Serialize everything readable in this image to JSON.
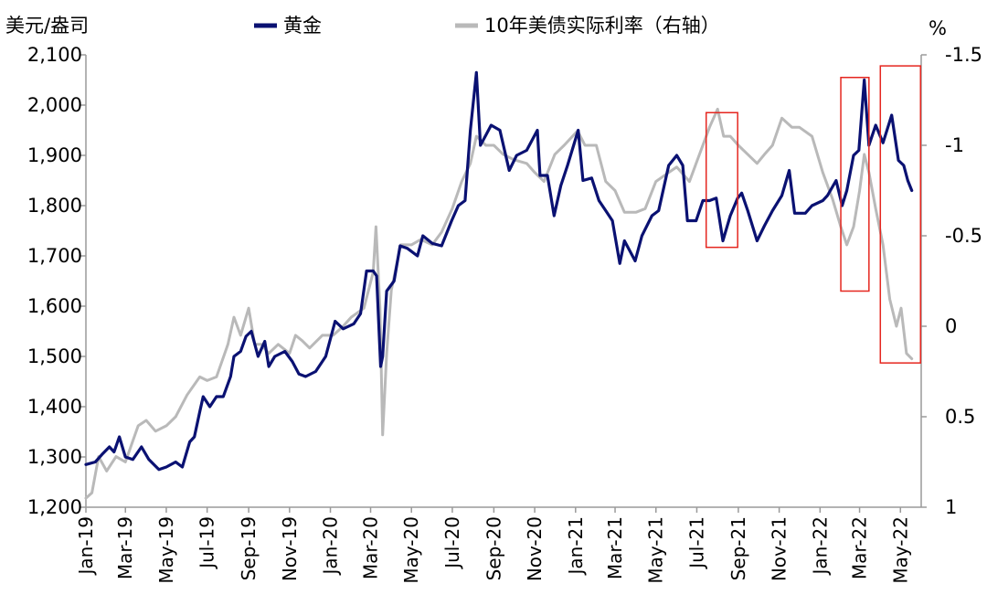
{
  "chart_data": {
    "type": "line",
    "left_axis_label": "美元/盎司",
    "right_axis_label": "%",
    "legend_position": "top",
    "y_left_lim": [
      1200,
      2100
    ],
    "y_left_ticks": [
      "1,200",
      "1,300",
      "1,400",
      "1,500",
      "1,600",
      "1,700",
      "1,800",
      "1,900",
      "2,000",
      "2,100"
    ],
    "y_right_lim": [
      1,
      -1.5
    ],
    "y_right_inverted": true,
    "y_right_ticks": [
      "1",
      "0.5",
      "0",
      "-0.5",
      "-1",
      "-1.5"
    ],
    "x_ticks": [
      "Jan-19",
      "Mar-19",
      "May-19",
      "Jul-19",
      "Sep-19",
      "Nov-19",
      "Jan-20",
      "Mar-20",
      "May-20",
      "Jul-20",
      "Sep-20",
      "Nov-20",
      "Jan-21",
      "Mar-21",
      "May-21",
      "Jul-21",
      "Sep-21",
      "Nov-21",
      "Jan-22",
      "Mar-22",
      "May-22"
    ],
    "series": [
      {
        "name": "黄金",
        "axis": "left",
        "color": "#0a1172",
        "points": [
          [
            "2019-01-01",
            1285
          ],
          [
            "2019-01-15",
            1290
          ],
          [
            "2019-01-25",
            1305
          ],
          [
            "2019-02-05",
            1320
          ],
          [
            "2019-02-12",
            1310
          ],
          [
            "2019-02-20",
            1340
          ],
          [
            "2019-03-01",
            1300
          ],
          [
            "2019-03-12",
            1295
          ],
          [
            "2019-03-25",
            1320
          ],
          [
            "2019-04-05",
            1295
          ],
          [
            "2019-04-20",
            1275
          ],
          [
            "2019-05-01",
            1280
          ],
          [
            "2019-05-15",
            1290
          ],
          [
            "2019-05-25",
            1280
          ],
          [
            "2019-06-05",
            1330
          ],
          [
            "2019-06-12",
            1340
          ],
          [
            "2019-06-20",
            1390
          ],
          [
            "2019-06-25",
            1420
          ],
          [
            "2019-07-05",
            1400
          ],
          [
            "2019-07-15",
            1420
          ],
          [
            "2019-07-25",
            1420
          ],
          [
            "2019-08-05",
            1460
          ],
          [
            "2019-08-10",
            1500
          ],
          [
            "2019-08-20",
            1510
          ],
          [
            "2019-08-28",
            1540
          ],
          [
            "2019-09-05",
            1550
          ],
          [
            "2019-09-15",
            1500
          ],
          [
            "2019-09-25",
            1530
          ],
          [
            "2019-10-01",
            1480
          ],
          [
            "2019-10-10",
            1500
          ],
          [
            "2019-10-25",
            1510
          ],
          [
            "2019-11-05",
            1490
          ],
          [
            "2019-11-15",
            1465
          ],
          [
            "2019-11-25",
            1460
          ],
          [
            "2019-12-10",
            1470
          ],
          [
            "2019-12-25",
            1500
          ],
          [
            "2020-01-08",
            1570
          ],
          [
            "2020-01-20",
            1555
          ],
          [
            "2020-02-05",
            1565
          ],
          [
            "2020-02-15",
            1585
          ],
          [
            "2020-02-24",
            1670
          ],
          [
            "2020-03-05",
            1670
          ],
          [
            "2020-03-10",
            1660
          ],
          [
            "2020-03-16",
            1480
          ],
          [
            "2020-03-19",
            1500
          ],
          [
            "2020-03-25",
            1630
          ],
          [
            "2020-04-05",
            1650
          ],
          [
            "2020-04-14",
            1720
          ],
          [
            "2020-04-25",
            1715
          ],
          [
            "2020-05-10",
            1700
          ],
          [
            "2020-05-18",
            1740
          ],
          [
            "2020-06-01",
            1725
          ],
          [
            "2020-06-15",
            1720
          ],
          [
            "2020-06-30",
            1770
          ],
          [
            "2020-07-10",
            1800
          ],
          [
            "2020-07-20",
            1810
          ],
          [
            "2020-07-28",
            1950
          ],
          [
            "2020-08-06",
            2065
          ],
          [
            "2020-08-12",
            1920
          ],
          [
            "2020-08-20",
            1940
          ],
          [
            "2020-08-28",
            1960
          ],
          [
            "2020-09-10",
            1950
          ],
          [
            "2020-09-24",
            1870
          ],
          [
            "2020-10-05",
            1900
          ],
          [
            "2020-10-20",
            1910
          ],
          [
            "2020-11-05",
            1950
          ],
          [
            "2020-11-09",
            1860
          ],
          [
            "2020-11-20",
            1860
          ],
          [
            "2020-11-30",
            1780
          ],
          [
            "2020-12-10",
            1840
          ],
          [
            "2020-12-20",
            1880
          ],
          [
            "2021-01-05",
            1950
          ],
          [
            "2021-01-12",
            1850
          ],
          [
            "2021-01-25",
            1855
          ],
          [
            "2021-02-05",
            1810
          ],
          [
            "2021-02-15",
            1790
          ],
          [
            "2021-02-25",
            1770
          ],
          [
            "2021-03-08",
            1685
          ],
          [
            "2021-03-15",
            1730
          ],
          [
            "2021-03-31",
            1690
          ],
          [
            "2021-04-10",
            1740
          ],
          [
            "2021-04-25",
            1780
          ],
          [
            "2021-05-05",
            1790
          ],
          [
            "2021-05-20",
            1880
          ],
          [
            "2021-06-01",
            1900
          ],
          [
            "2021-06-10",
            1880
          ],
          [
            "2021-06-17",
            1770
          ],
          [
            "2021-06-30",
            1770
          ],
          [
            "2021-07-10",
            1810
          ],
          [
            "2021-07-20",
            1810
          ],
          [
            "2021-07-30",
            1815
          ],
          [
            "2021-08-09",
            1730
          ],
          [
            "2021-08-20",
            1780
          ],
          [
            "2021-08-31",
            1815
          ],
          [
            "2021-09-06",
            1825
          ],
          [
            "2021-09-15",
            1790
          ],
          [
            "2021-09-29",
            1730
          ],
          [
            "2021-10-10",
            1760
          ],
          [
            "2021-10-22",
            1790
          ],
          [
            "2021-11-05",
            1820
          ],
          [
            "2021-11-16",
            1870
          ],
          [
            "2021-11-24",
            1785
          ],
          [
            "2021-12-10",
            1785
          ],
          [
            "2021-12-20",
            1800
          ],
          [
            "2022-01-05",
            1810
          ],
          [
            "2022-01-12",
            1820
          ],
          [
            "2022-01-25",
            1850
          ],
          [
            "2022-02-03",
            1800
          ],
          [
            "2022-02-10",
            1830
          ],
          [
            "2022-02-20",
            1900
          ],
          [
            "2022-02-28",
            1910
          ],
          [
            "2022-03-08",
            2050
          ],
          [
            "2022-03-15",
            1920
          ],
          [
            "2022-03-25",
            1960
          ],
          [
            "2022-04-05",
            1925
          ],
          [
            "2022-04-18",
            1980
          ],
          [
            "2022-04-28",
            1890
          ],
          [
            "2022-05-06",
            1880
          ],
          [
            "2022-05-12",
            1850
          ],
          [
            "2022-05-18",
            1830
          ]
        ]
      },
      {
        "name": "10年美债实际利率（右轴）",
        "axis": "right",
        "color": "#b9b9b9",
        "points": [
          [
            "2019-01-01",
            0.95
          ],
          [
            "2019-01-10",
            0.92
          ],
          [
            "2019-01-20",
            0.72
          ],
          [
            "2019-02-01",
            0.8
          ],
          [
            "2019-02-15",
            0.72
          ],
          [
            "2019-03-01",
            0.75
          ],
          [
            "2019-03-20",
            0.55
          ],
          [
            "2019-04-01",
            0.52
          ],
          [
            "2019-04-15",
            0.58
          ],
          [
            "2019-05-01",
            0.55
          ],
          [
            "2019-05-15",
            0.5
          ],
          [
            "2019-06-01",
            0.38
          ],
          [
            "2019-06-20",
            0.28
          ],
          [
            "2019-07-01",
            0.3
          ],
          [
            "2019-07-15",
            0.28
          ],
          [
            "2019-08-01",
            0.1
          ],
          [
            "2019-08-10",
            -0.05
          ],
          [
            "2019-08-20",
            0.05
          ],
          [
            "2019-09-01",
            -0.1
          ],
          [
            "2019-09-10",
            0.1
          ],
          [
            "2019-09-20",
            0.1
          ],
          [
            "2019-10-01",
            0.15
          ],
          [
            "2019-10-15",
            0.1
          ],
          [
            "2019-11-01",
            0.15
          ],
          [
            "2019-11-10",
            0.05
          ],
          [
            "2019-11-20",
            0.08
          ],
          [
            "2019-12-01",
            0.12
          ],
          [
            "2019-12-20",
            0.05
          ],
          [
            "2020-01-05",
            0.05
          ],
          [
            "2020-01-20",
            0.0
          ],
          [
            "2020-02-01",
            -0.05
          ],
          [
            "2020-02-20",
            -0.1
          ],
          [
            "2020-03-05",
            -0.3
          ],
          [
            "2020-03-09",
            -0.55
          ],
          [
            "2020-03-15",
            -0.1
          ],
          [
            "2020-03-19",
            0.6
          ],
          [
            "2020-03-25",
            0.15
          ],
          [
            "2020-04-01",
            -0.2
          ],
          [
            "2020-04-15",
            -0.45
          ],
          [
            "2020-05-01",
            -0.45
          ],
          [
            "2020-05-15",
            -0.48
          ],
          [
            "2020-06-01",
            -0.45
          ],
          [
            "2020-06-15",
            -0.52
          ],
          [
            "2020-07-01",
            -0.65
          ],
          [
            "2020-07-15",
            -0.8
          ],
          [
            "2020-07-28",
            -0.9
          ],
          [
            "2020-08-06",
            -1.05
          ],
          [
            "2020-08-20",
            -1.0
          ],
          [
            "2020-09-01",
            -1.0
          ],
          [
            "2020-09-15",
            -0.95
          ],
          [
            "2020-10-01",
            -0.92
          ],
          [
            "2020-10-20",
            -0.9
          ],
          [
            "2020-11-01",
            -0.85
          ],
          [
            "2020-11-15",
            -0.8
          ],
          [
            "2020-12-01",
            -0.95
          ],
          [
            "2020-12-15",
            -1.0
          ],
          [
            "2021-01-04",
            -1.08
          ],
          [
            "2021-01-15",
            -1.0
          ],
          [
            "2021-02-01",
            -1.0
          ],
          [
            "2021-02-15",
            -0.8
          ],
          [
            "2021-03-01",
            -0.75
          ],
          [
            "2021-03-15",
            -0.63
          ],
          [
            "2021-04-01",
            -0.63
          ],
          [
            "2021-04-15",
            -0.65
          ],
          [
            "2021-05-01",
            -0.8
          ],
          [
            "2021-05-20",
            -0.85
          ],
          [
            "2021-06-01",
            -0.88
          ],
          [
            "2021-06-20",
            -0.8
          ],
          [
            "2021-07-05",
            -0.95
          ],
          [
            "2021-07-20",
            -1.1
          ],
          [
            "2021-08-01",
            -1.2
          ],
          [
            "2021-08-10",
            -1.05
          ],
          [
            "2021-08-20",
            -1.05
          ],
          [
            "2021-09-01",
            -1.0
          ],
          [
            "2021-09-15",
            -0.95
          ],
          [
            "2021-09-29",
            -0.9
          ],
          [
            "2021-10-10",
            -0.95
          ],
          [
            "2021-10-22",
            -1.0
          ],
          [
            "2021-11-05",
            -1.15
          ],
          [
            "2021-11-20",
            -1.1
          ],
          [
            "2021-12-01",
            -1.1
          ],
          [
            "2021-12-20",
            -1.05
          ],
          [
            "2022-01-05",
            -0.85
          ],
          [
            "2022-01-20",
            -0.7
          ],
          [
            "2022-02-01",
            -0.55
          ],
          [
            "2022-02-10",
            -0.45
          ],
          [
            "2022-02-20",
            -0.55
          ],
          [
            "2022-03-01",
            -0.75
          ],
          [
            "2022-03-08",
            -0.95
          ],
          [
            "2022-03-15",
            -0.85
          ],
          [
            "2022-03-25",
            -0.65
          ],
          [
            "2022-04-05",
            -0.45
          ],
          [
            "2022-04-15",
            -0.15
          ],
          [
            "2022-04-25",
            0.0
          ],
          [
            "2022-05-02",
            -0.1
          ],
          [
            "2022-05-10",
            0.15
          ],
          [
            "2022-05-18",
            0.18
          ]
        ]
      }
    ],
    "highlight_boxes": [
      {
        "x": [
          "2021-07-15",
          "2021-08-31"
        ],
        "y_left": [
          1717,
          1985
        ]
      },
      {
        "x": [
          "2022-02-01",
          "2022-03-15"
        ],
        "y_left": [
          1630,
          2055
        ]
      },
      {
        "x": [
          "2022-04-01",
          "2022-05-31"
        ],
        "y_left": [
          1487,
          2078
        ]
      }
    ],
    "highlight_color": "#e5261f"
  }
}
